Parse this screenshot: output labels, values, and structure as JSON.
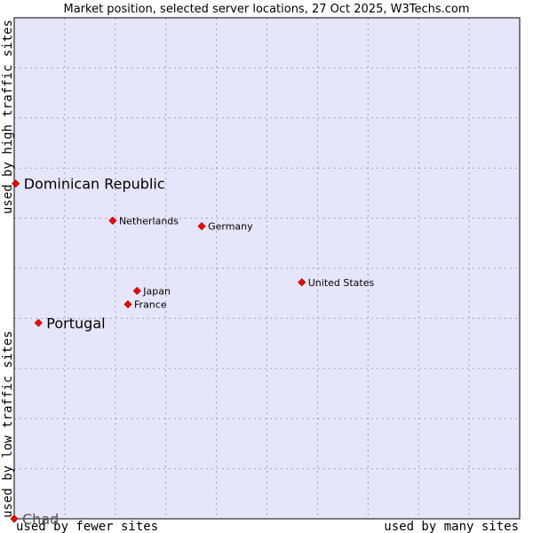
{
  "chart_data": {
    "type": "scatter",
    "title": "Market position, selected server locations, 27 Oct 2025, W3Techs.com",
    "xlabel_left": "used by fewer sites",
    "xlabel_right": "used by many sites",
    "ylabel_bottom": "used by low traffic sites",
    "ylabel_top": "used by high traffic sites",
    "xlim": [
      0,
      100
    ],
    "ylim": [
      0,
      100
    ],
    "grid": true,
    "colors": {
      "plot_background": "#e6e6fa",
      "grid": "#a0a0b4",
      "frame": "#000000",
      "marker": "#ff0000",
      "marker_edge": "#a00000"
    },
    "points": [
      {
        "name": "Dominican Republic",
        "x": 0.3,
        "y": 66.9,
        "size": "large"
      },
      {
        "name": "Netherlands",
        "x": 19.5,
        "y": 59.5,
        "size": "small"
      },
      {
        "name": "Germany",
        "x": 37.1,
        "y": 58.4,
        "size": "small"
      },
      {
        "name": "United States",
        "x": 56.9,
        "y": 47.2,
        "size": "small"
      },
      {
        "name": "Japan",
        "x": 24.3,
        "y": 45.5,
        "size": "small"
      },
      {
        "name": "France",
        "x": 22.5,
        "y": 42.8,
        "size": "small"
      },
      {
        "name": "Portugal",
        "x": 4.8,
        "y": 39.1,
        "size": "large"
      },
      {
        "name": "Chad",
        "x": 0,
        "y": 0,
        "size": "large",
        "dim": true
      }
    ]
  }
}
